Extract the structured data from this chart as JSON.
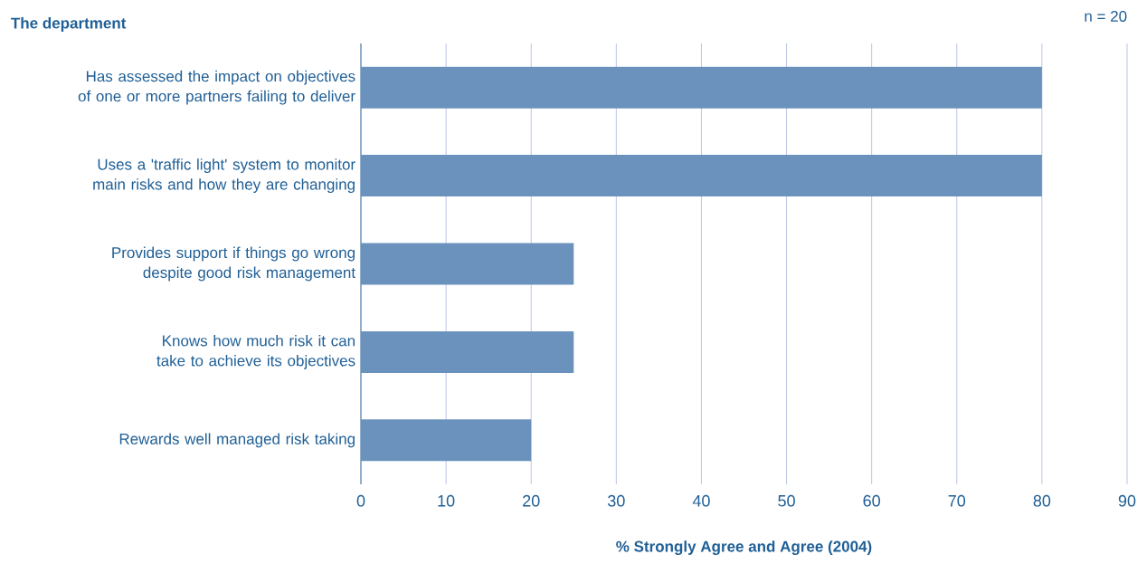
{
  "chart_data": {
    "type": "bar",
    "orientation": "horizontal",
    "title": "The department",
    "annotations": [
      "n = 20"
    ],
    "xlabel": "% Strongly Agree and Agree (2004)",
    "categories": [
      "Has assessed the impact on objectives of one or more partners failing to deliver",
      "Uses a 'traffic light' system to monitor main risks and how they are changing",
      "Provides support if things go wrong despite good risk management",
      "Knows how much risk it can take to achieve its objectives",
      "Rewards well managed risk taking"
    ],
    "values": [
      80,
      80,
      25,
      25,
      20
    ],
    "color": "#6b92bd",
    "xlim": [
      0,
      90
    ],
    "xticks": [
      0,
      10,
      20,
      30,
      40,
      50,
      60,
      70,
      80,
      90
    ],
    "grid": "x"
  }
}
